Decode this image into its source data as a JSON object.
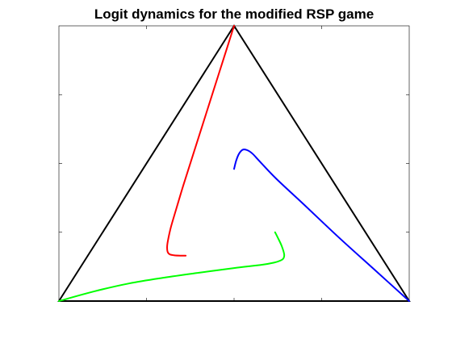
{
  "chart_data": {
    "type": "line",
    "title": "Logit dynamics for the modified RSP game",
    "xlabel": "",
    "ylabel": "",
    "xlim": [
      0,
      1
    ],
    "ylim": [
      0,
      1
    ],
    "x_tick_labels": false,
    "y_tick_labels": false,
    "grid": false,
    "legend": "none",
    "simplex": {
      "vertices": [
        [
          0,
          0
        ],
        [
          0.5,
          1
        ],
        [
          1,
          0
        ]
      ],
      "color": "#000000"
    },
    "series": [
      {
        "color": "#ff0000",
        "x": [
          0.5,
          0.47,
          0.44,
          0.41,
          0.38,
          0.355,
          0.335,
          0.32,
          0.312,
          0.309,
          0.31,
          0.316,
          0.33,
          0.35,
          0.362
        ],
        "y": [
          1.0,
          0.88,
          0.76,
          0.64,
          0.52,
          0.42,
          0.335,
          0.27,
          0.225,
          0.2,
          0.18,
          0.17,
          0.166,
          0.165,
          0.165
        ]
      },
      {
        "color": "#0000ff",
        "x": [
          0.5,
          0.506,
          0.514,
          0.525,
          0.538,
          0.553,
          0.575,
          0.62,
          0.7,
          0.8,
          0.9,
          1.0
        ],
        "y": [
          0.48,
          0.51,
          0.535,
          0.55,
          0.548,
          0.535,
          0.505,
          0.445,
          0.35,
          0.23,
          0.115,
          0.0
        ]
      },
      {
        "color": "#00ff00",
        "x": [
          0.617,
          0.625,
          0.636,
          0.643,
          0.641,
          0.632,
          0.615,
          0.58,
          0.5,
          0.4,
          0.3,
          0.2,
          0.1,
          0.0
        ],
        "y": [
          0.25,
          0.23,
          0.2,
          0.17,
          0.155,
          0.147,
          0.14,
          0.132,
          0.12,
          0.103,
          0.085,
          0.064,
          0.035,
          0.0
        ]
      }
    ]
  }
}
